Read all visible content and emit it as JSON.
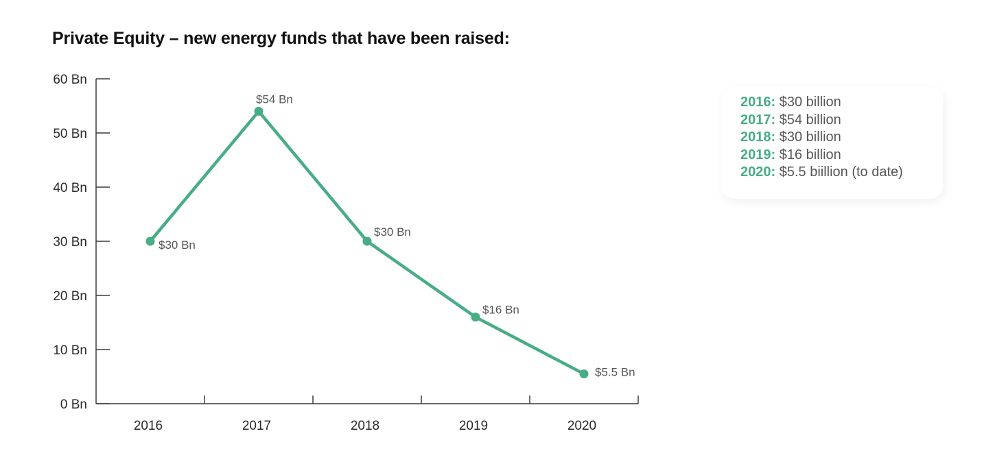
{
  "title": "Private Equity – new energy funds that have been raised:",
  "colors": {
    "accent": "#47ad84",
    "axis": "#3a3a3a",
    "label_gray": "#555555"
  },
  "chart_data": {
    "type": "line",
    "title": "Private Equity – new energy funds that have been raised:",
    "xlabel": "",
    "ylabel": "",
    "categories": [
      "2016",
      "2017",
      "2018",
      "2019",
      "2020"
    ],
    "series": [
      {
        "values": [
          30,
          54,
          30,
          16,
          5.5
        ],
        "data_labels": [
          "$30 Bn",
          "$54 Bn",
          "$30 Bn",
          "$16 Bn",
          "$5.5 Bn"
        ],
        "color": "#47ad84"
      }
    ],
    "ylim": [
      0,
      60
    ],
    "yticks": [
      0,
      10,
      20,
      30,
      40,
      50,
      60
    ],
    "ytick_labels": [
      "0 Bn",
      "10 Bn",
      "20 Bn",
      "30 Bn",
      "40 Bn",
      "50 Bn",
      "60 Bn"
    ],
    "grid": false,
    "legend": "none"
  },
  "summary": {
    "items": [
      {
        "year": "2016:",
        "text": " $30 billion"
      },
      {
        "year": "2017:",
        "text": " $54 billion"
      },
      {
        "year": "2018:",
        "text": " $30 billion"
      },
      {
        "year": "2019:",
        "text": " $16 billion"
      },
      {
        "year": "2020:",
        "text": " $5.5 biillion (to date)"
      }
    ]
  }
}
